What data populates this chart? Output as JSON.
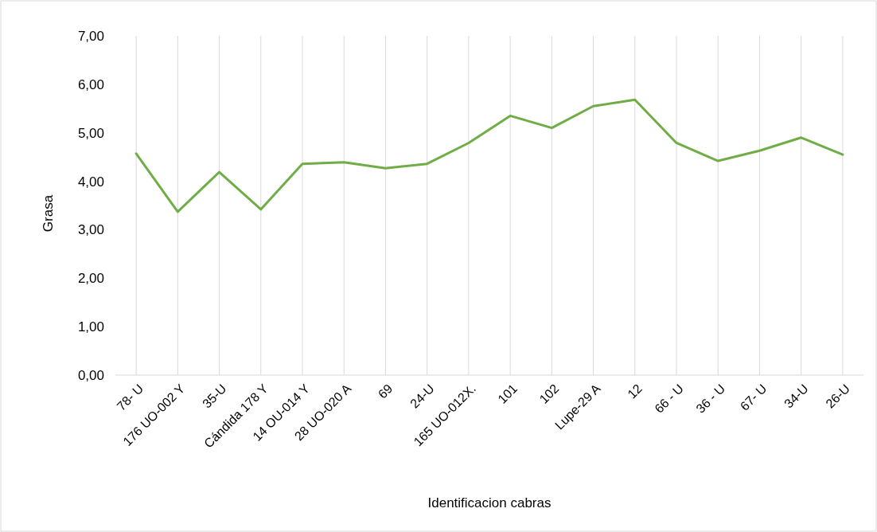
{
  "chart_data": {
    "type": "line",
    "xlabel": "Identificacion cabras",
    "ylabel": "Grasa",
    "categories": [
      "78- U",
      "176 UO-002 Y",
      "35-U",
      "Cándida 178 Y",
      "14 OU-014 Y",
      "28 UO-020 A",
      "69",
      "24-U",
      "165 UO-012X.",
      "101",
      "102",
      "Lupe-29 A",
      "12",
      "66 - U",
      "36 - U",
      "67- U",
      "34-U",
      "26-U"
    ],
    "series": [
      {
        "color": "#70ad47",
        "values": [
          4.57,
          3.37,
          4.19,
          3.42,
          4.36,
          4.39,
          4.27,
          4.36,
          4.79,
          5.35,
          5.1,
          5.55,
          5.68,
          4.79,
          4.42,
          4.63,
          4.9,
          4.55
        ]
      }
    ],
    "ylim": [
      0,
      7
    ],
    "yticks": [
      {
        "value": 0,
        "label": "0,00"
      },
      {
        "value": 1,
        "label": "1,00"
      },
      {
        "value": 2,
        "label": "2,00"
      },
      {
        "value": 3,
        "label": "3,00"
      },
      {
        "value": 4,
        "label": "4,00"
      },
      {
        "value": 5,
        "label": "5,00"
      },
      {
        "value": 6,
        "label": "6,00"
      },
      {
        "value": 7,
        "label": "7,00"
      }
    ],
    "grid": "x",
    "marker": "none",
    "line_style": "solid"
  }
}
